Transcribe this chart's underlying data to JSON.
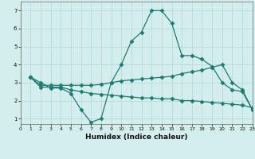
{
  "line1_x": [
    1,
    2,
    3,
    4,
    5,
    6,
    7,
    8,
    9,
    10,
    11,
    12,
    13,
    14,
    15,
    16,
    17,
    18,
    19,
    20,
    21,
    22,
    23
  ],
  "line1_y": [
    3.3,
    3.0,
    2.7,
    2.7,
    2.4,
    1.5,
    0.8,
    1.0,
    3.0,
    4.0,
    5.3,
    5.8,
    7.0,
    7.0,
    6.3,
    4.5,
    4.5,
    4.3,
    3.9,
    3.0,
    2.6,
    2.5,
    1.5
  ],
  "line2_x": [
    1,
    2,
    3,
    4,
    5,
    6,
    7,
    8,
    9,
    10,
    11,
    12,
    13,
    14,
    15,
    16,
    17,
    18,
    19,
    20,
    21,
    22,
    23
  ],
  "line2_y": [
    3.3,
    2.85,
    2.85,
    2.85,
    2.85,
    2.85,
    2.85,
    2.9,
    3.0,
    3.1,
    3.15,
    3.2,
    3.25,
    3.3,
    3.35,
    3.5,
    3.6,
    3.7,
    3.85,
    4.0,
    3.0,
    2.6,
    1.5
  ],
  "line3_x": [
    1,
    2,
    3,
    4,
    5,
    6,
    7,
    8,
    9,
    10,
    11,
    12,
    13,
    14,
    15,
    16,
    17,
    18,
    19,
    20,
    21,
    22,
    23
  ],
  "line3_y": [
    3.3,
    2.75,
    2.75,
    2.75,
    2.6,
    2.5,
    2.4,
    2.35,
    2.3,
    2.25,
    2.2,
    2.15,
    2.15,
    2.1,
    2.1,
    2.0,
    2.0,
    1.95,
    1.9,
    1.85,
    1.8,
    1.75,
    1.6
  ],
  "bg_color": "#d4eded",
  "grid_color": "#b0d8d8",
  "line_color": "#1e7b72",
  "xlabel": "Humidex (Indice chaleur)",
  "xlim": [
    0,
    23
  ],
  "ylim": [
    0.7,
    7.5
  ],
  "yticks": [
    1,
    2,
    3,
    4,
    5,
    6,
    7
  ],
  "xticks": [
    0,
    1,
    2,
    3,
    4,
    5,
    6,
    7,
    8,
    9,
    10,
    11,
    12,
    13,
    14,
    15,
    16,
    17,
    18,
    19,
    20,
    21,
    22,
    23
  ],
  "marker": "D",
  "markersize": 2.5,
  "linewidth": 0.9
}
